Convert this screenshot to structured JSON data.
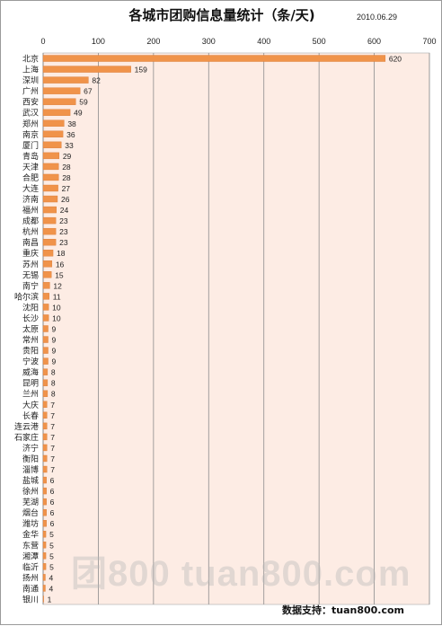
{
  "chart_data": {
    "type": "bar",
    "orientation": "horizontal",
    "title": "各城市团购信息量统计（条/天)",
    "date": "2010.06.29",
    "xlim": [
      0,
      700
    ],
    "xticks": [
      0,
      100,
      200,
      300,
      400,
      500,
      600,
      700
    ],
    "grid": true,
    "bar_color": "#f0934a",
    "plot_bg": "#fdece4",
    "categories": [
      "北京",
      "上海",
      "深圳",
      "广州",
      "西安",
      "武汉",
      "郑州",
      "南京",
      "厦门",
      "青岛",
      "天津",
      "合肥",
      "大连",
      "济南",
      "福州",
      "成都",
      "杭州",
      "南昌",
      "重庆",
      "苏州",
      "无锡",
      "南宁",
      "哈尔滨",
      "沈阳",
      "长沙",
      "太原",
      "常州",
      "贵阳",
      "宁波",
      "威海",
      "昆明",
      "兰州",
      "大庆",
      "长春",
      "连云港",
      "石家庄",
      "济宁",
      "衡阳",
      "淄博",
      "盐城",
      "徐州",
      "芜湖",
      "烟台",
      "潍坊",
      "金华",
      "东营",
      "湘潭",
      "临沂",
      "扬州",
      "南通",
      "银川"
    ],
    "values": [
      620,
      159,
      82,
      67,
      59,
      49,
      38,
      36,
      33,
      29,
      28,
      28,
      27,
      26,
      24,
      23,
      23,
      23,
      18,
      16,
      15,
      12,
      11,
      10,
      10,
      9,
      9,
      9,
      9,
      8,
      8,
      8,
      7,
      7,
      7,
      7,
      7,
      7,
      7,
      6,
      6,
      6,
      6,
      6,
      5,
      5,
      5,
      5,
      4,
      4,
      1
    ]
  },
  "watermark": "团800 tuan800.com",
  "footer": {
    "support": "数据支持：tuan800.com"
  }
}
